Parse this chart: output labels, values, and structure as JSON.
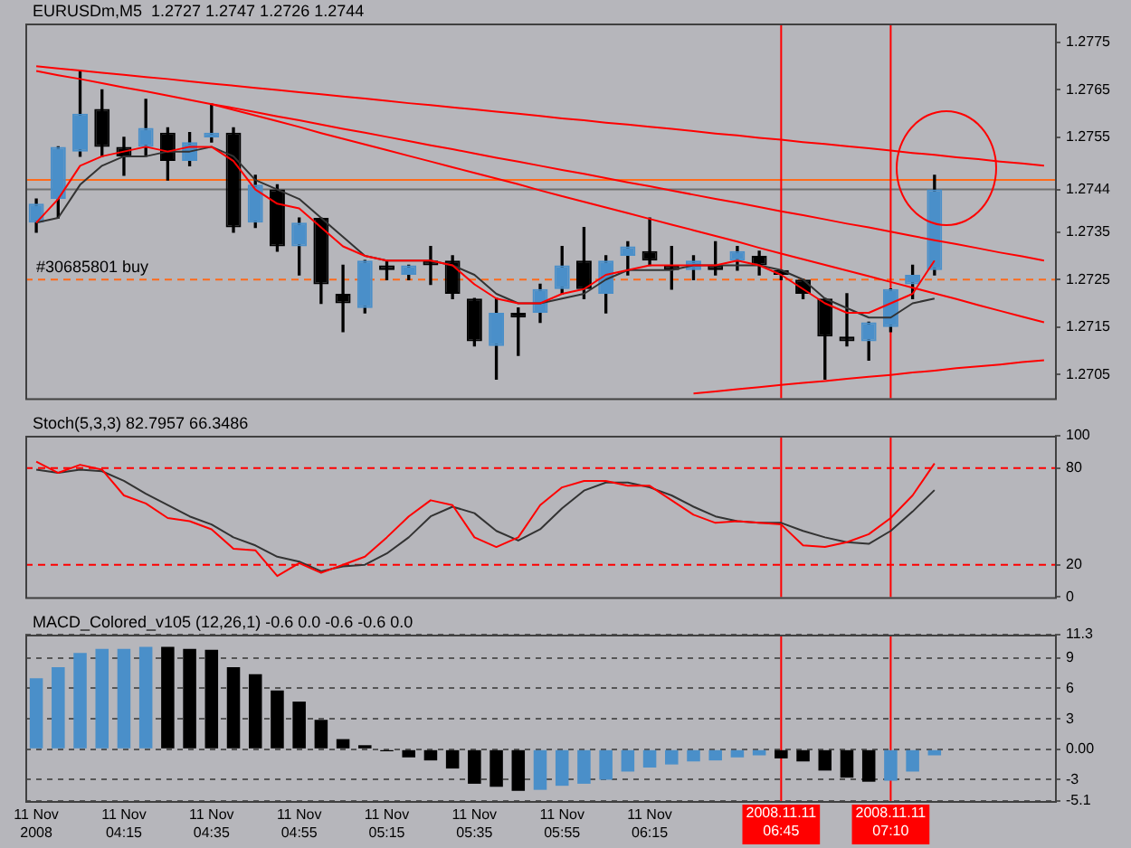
{
  "chart_data": [
    {
      "type": "candlestick",
      "title": "EURUSDm,M5  1.2727 1.2747 1.2726 1.2744",
      "categories": [
        "11 Nov 2008",
        null,
        null,
        null,
        "11 Nov 04:15",
        null,
        null,
        null,
        "11 Nov 04:35",
        null,
        null,
        null,
        "11 Nov 04:55",
        null,
        null,
        null,
        "11 Nov 05:15",
        null,
        null,
        null,
        "11 Nov 05:35",
        null,
        null,
        null,
        "11 Nov 05:55",
        null,
        null,
        null,
        "11 Nov 06:15",
        null,
        null,
        null,
        null,
        null,
        "2008.11.11 06:45",
        null,
        null,
        null,
        null,
        "2008.11.11 07:10",
        null,
        null,
        null,
        null,
        null,
        null,
        null
      ],
      "ohlc": [
        [
          1.2737,
          1.2742,
          1.2735,
          1.2741
        ],
        [
          1.2742,
          1.2753,
          1.2738,
          1.2753
        ],
        [
          1.2752,
          1.2769,
          1.2751,
          1.276
        ],
        [
          1.2761,
          1.2765,
          1.2751,
          1.2753
        ],
        [
          1.2753,
          1.2755,
          1.2747,
          1.2751
        ],
        [
          1.2753,
          1.2763,
          1.2751,
          1.2757
        ],
        [
          1.2756,
          1.2757,
          1.2746,
          1.275
        ],
        [
          1.275,
          1.2756,
          1.2749,
          1.2754
        ],
        [
          1.2755,
          1.2762,
          1.2754,
          1.2756
        ],
        [
          1.2756,
          1.2757,
          1.2735,
          1.2736
        ],
        [
          1.2737,
          1.2747,
          1.2736,
          1.2745
        ],
        [
          1.2744,
          1.2745,
          1.2731,
          1.2732
        ],
        [
          1.2732,
          1.2738,
          1.2726,
          1.2737
        ],
        [
          1.2738,
          1.2738,
          1.272,
          1.2724
        ],
        [
          1.2722,
          1.2728,
          1.2714,
          1.272
        ],
        [
          1.2719,
          1.2729,
          1.2718,
          1.2729
        ],
        [
          1.2728,
          1.2729,
          1.2725,
          1.2727
        ],
        [
          1.2726,
          1.2728,
          1.2725,
          1.2728
        ],
        [
          1.2729,
          1.2732,
          1.2724,
          1.2728
        ],
        [
          1.2729,
          1.273,
          1.2721,
          1.2722
        ],
        [
          1.2721,
          1.2721,
          1.2711,
          1.2712
        ],
        [
          1.2711,
          1.2721,
          1.2704,
          1.2718
        ],
        [
          1.2718,
          1.2719,
          1.2709,
          1.2717
        ],
        [
          1.2718,
          1.2724,
          1.2716,
          1.2723
        ],
        [
          1.2723,
          1.2732,
          1.2722,
          1.2728
        ],
        [
          1.2729,
          1.2736,
          1.2721,
          1.2723
        ],
        [
          1.2722,
          1.273,
          1.2718,
          1.2729
        ],
        [
          1.273,
          1.2733,
          1.2726,
          1.2732
        ],
        [
          1.2731,
          1.2738,
          1.2728,
          1.2729
        ],
        [
          1.2728,
          1.2732,
          1.2723,
          1.2727
        ],
        [
          1.2727,
          1.273,
          1.2725,
          1.2729
        ],
        [
          1.2728,
          1.2733,
          1.2726,
          1.2727
        ],
        [
          1.2729,
          1.2732,
          1.2727,
          1.2731
        ],
        [
          1.273,
          1.2731,
          1.2726,
          1.2728
        ],
        [
          1.2727,
          1.2727,
          1.2725,
          1.2726
        ],
        [
          1.2725,
          1.2725,
          1.2721,
          1.2722
        ],
        [
          1.2721,
          1.2721,
          1.2704,
          1.2713
        ],
        [
          1.2713,
          1.2722,
          1.2711,
          1.2712
        ],
        [
          1.2712,
          1.2716,
          1.2708,
          1.2716
        ],
        [
          1.2715,
          1.2723,
          1.2714,
          1.2723
        ],
        [
          1.2724,
          1.2728,
          1.2721,
          1.2726
        ],
        [
          1.2727,
          1.2747,
          1.2726,
          1.2744
        ],
        null,
        null,
        null,
        null,
        null
      ],
      "colors": [
        "#4a8fc9",
        "#4a8fc9",
        "#4a8fc9",
        "#000000",
        "#000000",
        "#4a8fc9",
        "#000000",
        "#4a8fc9",
        "#4a8fc9",
        "#000000",
        "#4a8fc9",
        "#000000",
        "#4a8fc9",
        "#000000",
        "#000000",
        "#4a8fc9",
        "#000000",
        "#4a8fc9",
        "#000000",
        "#000000",
        "#000000",
        "#4a8fc9",
        "#000000",
        "#4a8fc9",
        "#4a8fc9",
        "#000000",
        "#4a8fc9",
        "#4a8fc9",
        "#000000",
        "#000000",
        "#4a8fc9",
        "#000000",
        "#4a8fc9",
        "#000000",
        "#000000",
        "#000000",
        "#000000",
        "#000000",
        "#4a8fc9",
        "#4a8fc9",
        "#4a8fc9",
        "#4a8fc9",
        null,
        null,
        null,
        null,
        null
      ],
      "series": [
        {
          "type": "line",
          "color": "#ff0000",
          "values": [
            1.2737,
            1.2742,
            1.2749,
            1.2751,
            1.2752,
            1.2753,
            1.2752,
            1.2753,
            1.2753,
            1.275,
            1.2744,
            1.2741,
            1.274,
            1.2736,
            1.2732,
            1.273,
            1.2729,
            1.2729,
            1.2729,
            1.2728,
            1.2724,
            1.2721,
            1.272,
            1.272,
            1.2722,
            1.2723,
            1.2726,
            1.2727,
            1.2728,
            1.2728,
            1.2728,
            1.2728,
            1.2729,
            1.2728,
            1.2726,
            1.2723,
            1.272,
            1.2718,
            1.2718,
            1.272,
            1.2722,
            1.2729,
            null,
            null,
            null,
            null,
            null
          ]
        },
        {
          "type": "line",
          "color": "#333333",
          "values": [
            1.2737,
            1.2738,
            1.2745,
            1.2749,
            1.2751,
            1.2751,
            1.2752,
            1.2752,
            1.2753,
            1.2751,
            1.2746,
            1.2744,
            1.2742,
            1.2738,
            1.2734,
            1.273,
            1.2729,
            1.2729,
            1.2729,
            1.2728,
            1.2726,
            1.2722,
            1.272,
            1.272,
            1.2721,
            1.2722,
            1.2725,
            1.2727,
            1.2727,
            1.2727,
            1.2728,
            1.2728,
            1.2728,
            1.2728,
            1.2727,
            1.2725,
            1.2721,
            1.2719,
            1.2717,
            1.2717,
            1.272,
            1.2721,
            null,
            null,
            null,
            null,
            null
          ]
        },
        {
          "type": "line",
          "color": "#ff0000",
          "values": [
            1.277,
            1.27695,
            1.27691,
            1.27686,
            1.27682,
            1.27677,
            1.27673,
            1.27668,
            1.27663,
            1.27659,
            1.27654,
            1.2765,
            1.27645,
            1.27641,
            1.27636,
            1.27632,
            1.27627,
            1.27622,
            1.27618,
            1.27613,
            1.27609,
            1.27604,
            1.276,
            1.27595,
            1.2759,
            1.27586,
            1.27581,
            1.27577,
            1.27572,
            1.27568,
            1.27563,
            1.27558,
            1.27554,
            1.27549,
            1.27545,
            1.2754,
            1.27536,
            1.27531,
            1.27527,
            1.27522,
            1.27517,
            1.27513,
            1.27508,
            1.27504,
            1.27499,
            1.27495,
            1.2749
          ]
        },
        {
          "type": "line",
          "color": "#ff0000",
          "values": [
            1.2769,
            1.27681,
            1.27673,
            1.27664,
            1.27655,
            1.27647,
            1.27638,
            1.27629,
            1.2762,
            1.27612,
            1.27603,
            1.27594,
            1.27586,
            1.27577,
            1.27568,
            1.2756,
            1.27551,
            1.27542,
            1.27533,
            1.27525,
            1.27516,
            1.27507,
            1.27499,
            1.2749,
            1.27481,
            1.27473,
            1.27464,
            1.27455,
            1.27447,
            1.27438,
            1.27429,
            1.2742,
            1.27412,
            1.27403,
            1.27394,
            1.27386,
            1.27377,
            1.27368,
            1.2736,
            1.27351,
            1.27342,
            1.27333,
            1.27325,
            1.27316,
            1.27307,
            1.27299,
            1.2729
          ]
        },
        {
          "type": "line",
          "color": "#ff0000",
          "values": [
            null,
            null,
            null,
            null,
            null,
            null,
            null,
            null,
            1.2762,
            1.27608,
            1.27596,
            1.27584,
            1.27572,
            1.27559,
            1.27547,
            1.27535,
            1.27523,
            1.27511,
            1.27499,
            1.27487,
            1.27475,
            1.27463,
            1.27451,
            1.27438,
            1.27426,
            1.27414,
            1.27402,
            1.2739,
            1.27378,
            1.27366,
            1.27354,
            1.27342,
            1.2733,
            1.27317,
            1.27305,
            1.27293,
            1.27281,
            1.27269,
            1.27257,
            1.27245,
            1.27233,
            1.27221,
            1.27209,
            1.27196,
            1.27184,
            1.27172,
            1.2716
          ]
        },
        {
          "type": "line",
          "color": "#ff0000",
          "values": [
            null,
            null,
            null,
            null,
            null,
            null,
            null,
            null,
            null,
            null,
            null,
            null,
            null,
            null,
            null,
            null,
            null,
            null,
            null,
            null,
            null,
            null,
            null,
            null,
            null,
            null,
            null,
            null,
            null,
            null,
            1.2701,
            1.27014,
            1.27019,
            1.27023,
            1.27028,
            1.27032,
            1.27036,
            1.27041,
            1.27045,
            1.27049,
            1.27054,
            1.27058,
            1.27063,
            1.27067,
            1.27071,
            1.27076,
            1.2708
          ]
        }
      ],
      "ylim": [
        1.27,
        1.2779
      ],
      "yticks": [
        1.2705,
        1.2715,
        1.2725,
        1.2735,
        1.2744,
        1.2755,
        1.2765,
        1.2775
      ],
      "ref_lines": [
        {
          "axis": "y",
          "value": 1.2744,
          "color": "#707070"
        },
        {
          "axis": "y",
          "value": 1.2746,
          "color": "#ff6a1a"
        },
        {
          "axis": "y",
          "value": 1.2725,
          "label": "#30685801 buy",
          "color": "#ff6a1a",
          "line_style": "dashed"
        },
        {
          "axis": "x",
          "value": "2008.11.11 06:45",
          "color": "#ff0000"
        },
        {
          "axis": "x",
          "value": "2008.11.11 07:10",
          "color": "#ff0000"
        }
      ],
      "tick_labels": "y"
    },
    {
      "type": "line",
      "title": "Stoch(5,3,3) 82.7957 66.3486",
      "categories": [
        "11 Nov 2008",
        null,
        null,
        null,
        "11 Nov 04:15",
        null,
        null,
        null,
        "11 Nov 04:35",
        null,
        null,
        null,
        "11 Nov 04:55",
        null,
        null,
        null,
        "11 Nov 05:15",
        null,
        null,
        null,
        "11 Nov 05:35",
        null,
        null,
        null,
        "11 Nov 05:55",
        null,
        null,
        null,
        "11 Nov 06:15",
        null,
        null,
        null,
        null,
        null,
        "2008.11.11 06:45",
        null,
        null,
        null,
        null,
        "2008.11.11 07:10",
        null,
        null,
        null,
        null,
        null,
        null,
        null
      ],
      "series": [
        {
          "color": "#ff0000",
          "values": [
            84,
            77,
            82,
            79,
            63,
            58,
            49,
            47,
            42,
            30,
            29,
            13,
            21,
            15,
            20,
            25,
            37,
            50,
            60,
            57,
            37,
            31,
            37,
            57,
            68,
            72,
            72,
            69,
            69,
            60,
            51,
            46,
            47,
            46,
            45,
            32,
            31,
            34,
            39,
            49,
            63,
            82.8,
            null,
            null,
            null,
            null,
            null
          ]
        },
        {
          "color": "#333333",
          "values": [
            79,
            77,
            79,
            78,
            72,
            64,
            57,
            50,
            45,
            37,
            32,
            25,
            22,
            16,
            19,
            20,
            27,
            37,
            50,
            56,
            52,
            41,
            35,
            42,
            55,
            66,
            71,
            71,
            68,
            63,
            56,
            50,
            47,
            46,
            46,
            41,
            37,
            34,
            33,
            41,
            53,
            66.3,
            null,
            null,
            null,
            null,
            null
          ]
        }
      ],
      "ylim": [
        0,
        100
      ],
      "yticks": [
        0,
        20,
        80,
        100
      ],
      "ref_lines": [
        {
          "axis": "y",
          "value": 80,
          "color": "#ff0000",
          "line_style": "dashed"
        },
        {
          "axis": "y",
          "value": 20,
          "color": "#ff0000",
          "line_style": "dashed"
        },
        {
          "axis": "x",
          "value": "2008.11.11 06:45",
          "color": "#ff0000"
        },
        {
          "axis": "x",
          "value": "2008.11.11 07:10",
          "color": "#ff0000"
        }
      ],
      "tick_labels": "y"
    },
    {
      "type": "bar",
      "title": "MACD_Colored_v105 (12,26,1) -0.6 0.0 -0.6 -0.6 0.0",
      "categories": [
        "11 Nov 2008",
        null,
        null,
        null,
        "11 Nov 04:15",
        null,
        null,
        null,
        "11 Nov 04:35",
        null,
        null,
        null,
        "11 Nov 04:55",
        null,
        null,
        null,
        "11 Nov 05:15",
        null,
        null,
        null,
        "11 Nov 05:35",
        null,
        null,
        null,
        "11 Nov 05:55",
        null,
        null,
        null,
        "11 Nov 06:15",
        null,
        null,
        null,
        null,
        null,
        "2008.11.11 06:45",
        null,
        null,
        null,
        null,
        "2008.11.11 07:10",
        null,
        null,
        null,
        null,
        null,
        null,
        null
      ],
      "values": [
        7.0,
        8.1,
        9.5,
        9.9,
        9.9,
        10.1,
        10.1,
        9.9,
        9.8,
        8.1,
        7.4,
        5.8,
        4.7,
        2.9,
        1.0,
        0.4,
        -0.2,
        -0.8,
        -1.1,
        -1.9,
        -3.4,
        -3.7,
        -4.1,
        -4.0,
        -3.6,
        -3.4,
        -3.0,
        -2.2,
        -1.8,
        -1.5,
        -1.2,
        -1.1,
        -0.8,
        -0.6,
        -0.9,
        -1.2,
        -2.1,
        -2.8,
        -3.2,
        -3.1,
        -2.2,
        -0.6,
        null,
        null,
        null,
        null,
        null
      ],
      "colors": [
        "#4a8fc9",
        "#4a8fc9",
        "#4a8fc9",
        "#4a8fc9",
        "#4a8fc9",
        "#4a8fc9",
        "#000000",
        "#000000",
        "#000000",
        "#000000",
        "#000000",
        "#000000",
        "#000000",
        "#000000",
        "#000000",
        "#000000",
        "#000000",
        "#000000",
        "#000000",
        "#000000",
        "#000000",
        "#000000",
        "#000000",
        "#4a8fc9",
        "#4a8fc9",
        "#4a8fc9",
        "#4a8fc9",
        "#4a8fc9",
        "#4a8fc9",
        "#4a8fc9",
        "#4a8fc9",
        "#4a8fc9",
        "#4a8fc9",
        "#4a8fc9",
        "#000000",
        "#000000",
        "#000000",
        "#000000",
        "#000000",
        "#4a8fc9",
        "#4a8fc9",
        "#4a8fc9",
        null,
        null,
        null,
        null,
        null
      ],
      "ylim": [
        -5.1,
        11.3
      ],
      "yticks": [
        -5.1,
        -3,
        {
          "value": 0,
          "label": "0.00"
        },
        3,
        6,
        9,
        11.3
      ],
      "grid": "y",
      "ref_lines": [
        {
          "axis": "x",
          "value": "2008.11.11 06:45",
          "color": "#ff0000"
        },
        {
          "axis": "x",
          "value": "2008.11.11 07:10",
          "color": "#ff0000"
        }
      ]
    }
  ]
}
